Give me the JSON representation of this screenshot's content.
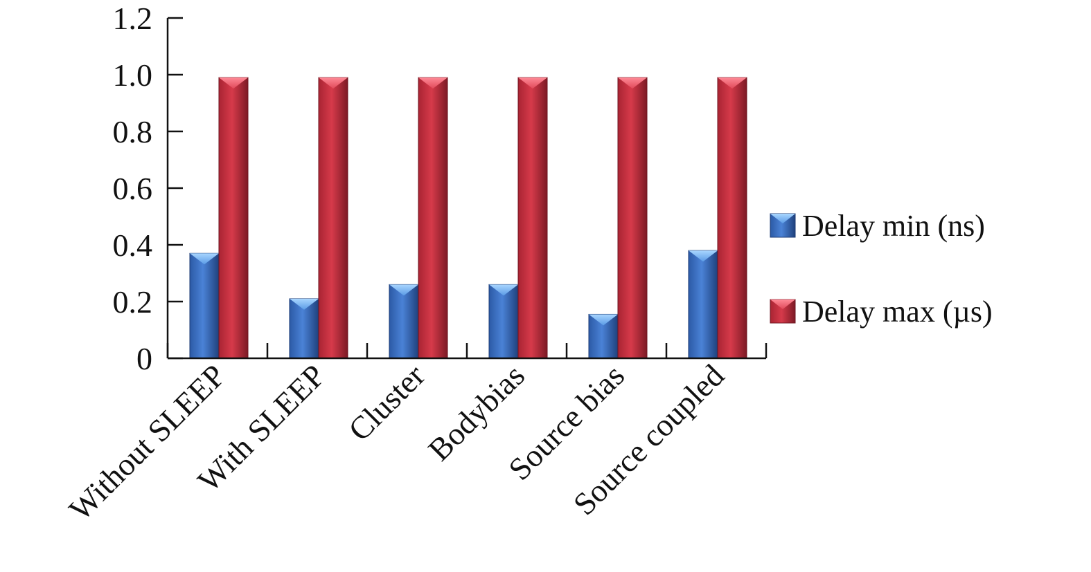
{
  "chart_data": {
    "type": "bar",
    "title": "",
    "xlabel": "",
    "ylabel": "",
    "ylim": [
      0,
      1.2
    ],
    "yticks": [
      "0",
      "0.2",
      "0.4",
      "0.6",
      "0.8",
      "1.0",
      "1.2"
    ],
    "ytick_values": [
      0,
      0.2,
      0.4,
      0.6,
      0.8,
      1.0,
      1.2
    ],
    "categories": [
      "Without SLEEP",
      "With SLEEP",
      "Cluster",
      "Bodybias",
      "Source bias",
      "Source coupled"
    ],
    "series": [
      {
        "name": "Delay min (ns)",
        "color": "#3b6fc4",
        "values": [
          0.37,
          0.21,
          0.26,
          0.26,
          0.155,
          0.38
        ]
      },
      {
        "name": "Delay max (µs)",
        "color": "#c8303f",
        "values": [
          0.99,
          0.99,
          0.99,
          0.99,
          0.99,
          0.99
        ]
      }
    ],
    "grid": false,
    "legend_position": "right"
  }
}
